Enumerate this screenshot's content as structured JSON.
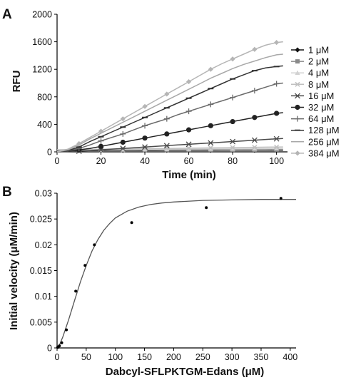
{
  "chart_data": [
    {
      "panel": "A",
      "type": "line",
      "xlabel": "Time (min)",
      "ylabel": "RFU",
      "xlim": [
        0,
        105
      ],
      "ylim": [
        0,
        2000
      ],
      "xticks": [
        "0",
        "20",
        "40",
        "60",
        "80",
        "100"
      ],
      "yticks": [
        "0",
        "400",
        "800",
        "1200",
        "1600",
        "2000"
      ],
      "grid": false,
      "legend_position": "right",
      "x": [
        0,
        5,
        10,
        15,
        20,
        25,
        30,
        35,
        40,
        45,
        50,
        55,
        60,
        65,
        70,
        75,
        80,
        85,
        90,
        95,
        100,
        103
      ],
      "series": [
        {
          "name": "1 μM",
          "color": "#111111",
          "marker": "diamond",
          "values": [
            20,
            20,
            20,
            20,
            20,
            21,
            21,
            21,
            21,
            21,
            22,
            22,
            22,
            22,
            22,
            23,
            23,
            23,
            23,
            24,
            24,
            24
          ]
        },
        {
          "name": "2 μM",
          "color": "#8a8a8a",
          "marker": "square",
          "values": [
            25,
            25,
            26,
            26,
            26,
            27,
            27,
            27,
            28,
            28,
            28,
            29,
            29,
            29,
            30,
            30,
            30,
            31,
            31,
            31,
            32,
            32
          ]
        },
        {
          "name": "4 μM",
          "color": "#d2d2d2",
          "marker": "triangle",
          "values": [
            30,
            31,
            32,
            33,
            34,
            35,
            36,
            37,
            38,
            39,
            40,
            41,
            42,
            43,
            44,
            45,
            46,
            47,
            48,
            49,
            50,
            50
          ]
        },
        {
          "name": "8 μM",
          "color": "#c0c0c0",
          "marker": "x",
          "values": [
            30,
            32,
            34,
            36,
            38,
            40,
            42,
            44,
            46,
            48,
            50,
            52,
            54,
            56,
            58,
            60,
            62,
            64,
            66,
            68,
            70,
            72
          ]
        },
        {
          "name": "16 μM",
          "color": "#4a4a4a",
          "marker": "asterisk",
          "values": [
            0,
            5,
            10,
            20,
            30,
            40,
            50,
            60,
            70,
            80,
            90,
            100,
            110,
            120,
            130,
            140,
            150,
            160,
            170,
            180,
            190,
            195
          ]
        },
        {
          "name": "32 μM",
          "color": "#222222",
          "marker": "circle",
          "values": [
            0,
            10,
            30,
            50,
            80,
            110,
            140,
            170,
            200,
            230,
            260,
            290,
            320,
            350,
            380,
            410,
            440,
            470,
            500,
            530,
            560,
            570
          ]
        },
        {
          "name": "64 μM",
          "color": "#6a6a6a",
          "marker": "plus",
          "values": [
            0,
            15,
            50,
            100,
            160,
            210,
            260,
            320,
            380,
            430,
            480,
            540,
            590,
            640,
            690,
            740,
            790,
            840,
            890,
            940,
            990,
            1000
          ]
        },
        {
          "name": "128 μM",
          "color": "#333333",
          "marker": "dash",
          "values": [
            0,
            20,
            70,
            150,
            220,
            290,
            360,
            430,
            500,
            570,
            640,
            710,
            780,
            850,
            920,
            990,
            1060,
            1120,
            1180,
            1220,
            1240,
            1250
          ]
        },
        {
          "name": "256 μM",
          "color": "#a8a8a8",
          "marker": "none",
          "values": [
            0,
            30,
            100,
            190,
            270,
            350,
            430,
            510,
            590,
            670,
            750,
            830,
            910,
            990,
            1070,
            1140,
            1210,
            1270,
            1320,
            1370,
            1410,
            1420
          ]
        },
        {
          "name": "384 μM",
          "color": "#b5b5b5",
          "marker": "diamond",
          "values": [
            0,
            40,
            120,
            210,
            300,
            390,
            480,
            570,
            660,
            750,
            840,
            930,
            1020,
            1110,
            1200,
            1280,
            1350,
            1420,
            1490,
            1550,
            1590,
            1600
          ]
        }
      ]
    },
    {
      "panel": "B",
      "type": "scatter",
      "xlabel": "Dabcyl-SFLPKTGM-Edans (μM)",
      "ylabel": "Initial velocity (μM/min)",
      "xlim": [
        0,
        410
      ],
      "ylim": [
        0,
        0.03
      ],
      "xticks": [
        "0",
        "50",
        "100",
        "150",
        "200",
        "250",
        "300",
        "350",
        "400"
      ],
      "yticks": [
        "0",
        "0.005",
        "0.01",
        "0.015",
        "0.02",
        "0.025",
        "0.03"
      ],
      "grid": false,
      "points": {
        "x": [
          1,
          2,
          4,
          8,
          16,
          32,
          48,
          64,
          128,
          256,
          384
        ],
        "y": [
          0.0001,
          0.0002,
          0.0004,
          0.001,
          0.0035,
          0.011,
          0.016,
          0.02,
          0.0243,
          0.0272,
          0.029
        ]
      },
      "fit": {
        "x": [
          0,
          5,
          10,
          20,
          30,
          40,
          50,
          60,
          70,
          80,
          90,
          100,
          120,
          140,
          160,
          180,
          200,
          250,
          300,
          350,
          400,
          410
        ],
        "y": [
          0,
          0.0008,
          0.0022,
          0.0055,
          0.0092,
          0.0128,
          0.016,
          0.0188,
          0.021,
          0.0228,
          0.0241,
          0.0252,
          0.0265,
          0.0273,
          0.0278,
          0.0281,
          0.0283,
          0.0286,
          0.0287,
          0.0288,
          0.0288,
          0.0288
        ]
      }
    }
  ]
}
